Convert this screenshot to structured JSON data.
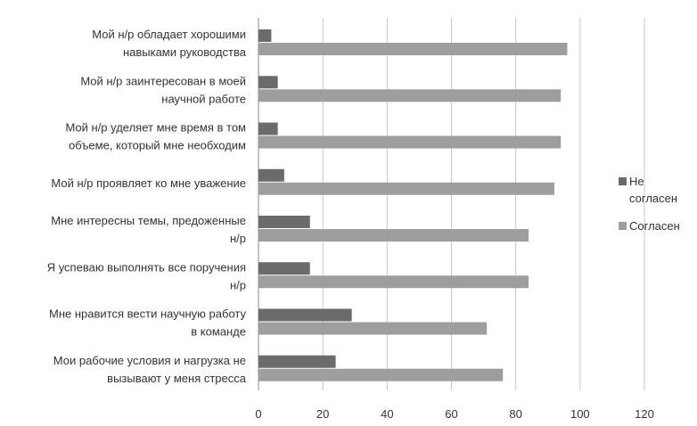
{
  "chart_data": {
    "type": "bar",
    "orientation": "horizontal",
    "categories": [
      [
        "Мой  н/р обладает хорошими",
        "навыками руководства"
      ],
      [
        "Мой  н/р  заинтересован в моей",
        "научной работе"
      ],
      [
        "Мой  н/р уделяет мне время  в том",
        "объеме, который мне необходим"
      ],
      [
        "Мой  н/р проявляет ко мне уважение"
      ],
      [
        "Мне интересны темы, предоженные",
        "н/р"
      ],
      [
        "Я успеваю выполнять все поручения",
        "н/р"
      ],
      [
        "Мне нравится вести научную работу",
        "в команде"
      ],
      [
        "Мои рабочие условия и нагрузка не",
        "вызывают у меня стресса"
      ]
    ],
    "series": [
      {
        "name": [
          "Не",
          "согласен"
        ],
        "color": "#6b6b6b",
        "values": [
          4,
          6,
          6,
          8,
          16,
          16,
          29,
          24
        ]
      },
      {
        "name": [
          "Согласен"
        ],
        "color": "#9e9e9e",
        "values": [
          96,
          94,
          94,
          92,
          84,
          84,
          71,
          76
        ]
      }
    ],
    "xlim": [
      0,
      120
    ],
    "xticks": [
      "0",
      "20",
      "40",
      "60",
      "80",
      "100",
      "120"
    ],
    "grid": true,
    "legend_position": "right"
  }
}
